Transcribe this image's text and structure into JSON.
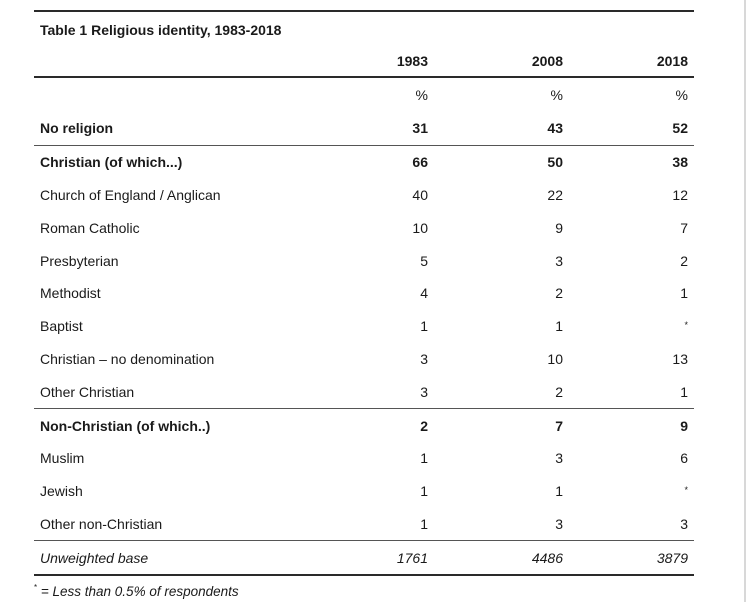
{
  "table": {
    "title": "Table 1 Religious identity, 1983-2018",
    "columns": [
      "1983",
      "2008",
      "2018"
    ],
    "units": [
      "%",
      "%",
      "%"
    ],
    "rows": [
      {
        "label": "No religion",
        "values": [
          "31",
          "43",
          "52"
        ],
        "bold": true
      },
      {
        "label": "Christian (of which...)",
        "values": [
          "66",
          "50",
          "38"
        ],
        "bold": true
      },
      {
        "label": "Church of England / Anglican",
        "values": [
          "40",
          "22",
          "12"
        ]
      },
      {
        "label": "Roman Catholic",
        "values": [
          "10",
          "9",
          "7"
        ]
      },
      {
        "label": "Presbyterian",
        "values": [
          "5",
          "3",
          "2"
        ]
      },
      {
        "label": "Methodist",
        "values": [
          "4",
          "2",
          "1"
        ]
      },
      {
        "label": "Baptist",
        "values": [
          "1",
          "1",
          "*"
        ]
      },
      {
        "label": "Christian – no denomination",
        "values": [
          "3",
          "10",
          "13"
        ]
      },
      {
        "label": "Other Christian",
        "values": [
          "3",
          "2",
          "1"
        ]
      },
      {
        "label": "Non-Christian (of which..)",
        "values": [
          "2",
          "7",
          "9"
        ],
        "bold": true
      },
      {
        "label": "Muslim",
        "values": [
          "1",
          "3",
          "6"
        ]
      },
      {
        "label": "Jewish",
        "values": [
          "1",
          "1",
          "*"
        ]
      },
      {
        "label": "Other non-Christian",
        "values": [
          "1",
          "3",
          "3"
        ]
      }
    ],
    "base": {
      "label": "Unweighted base",
      "values": [
        "1761",
        "4486",
        "3879"
      ]
    }
  },
  "footnote": {
    "marker": "*",
    "text": " = Less than 0.5% of respondents"
  }
}
